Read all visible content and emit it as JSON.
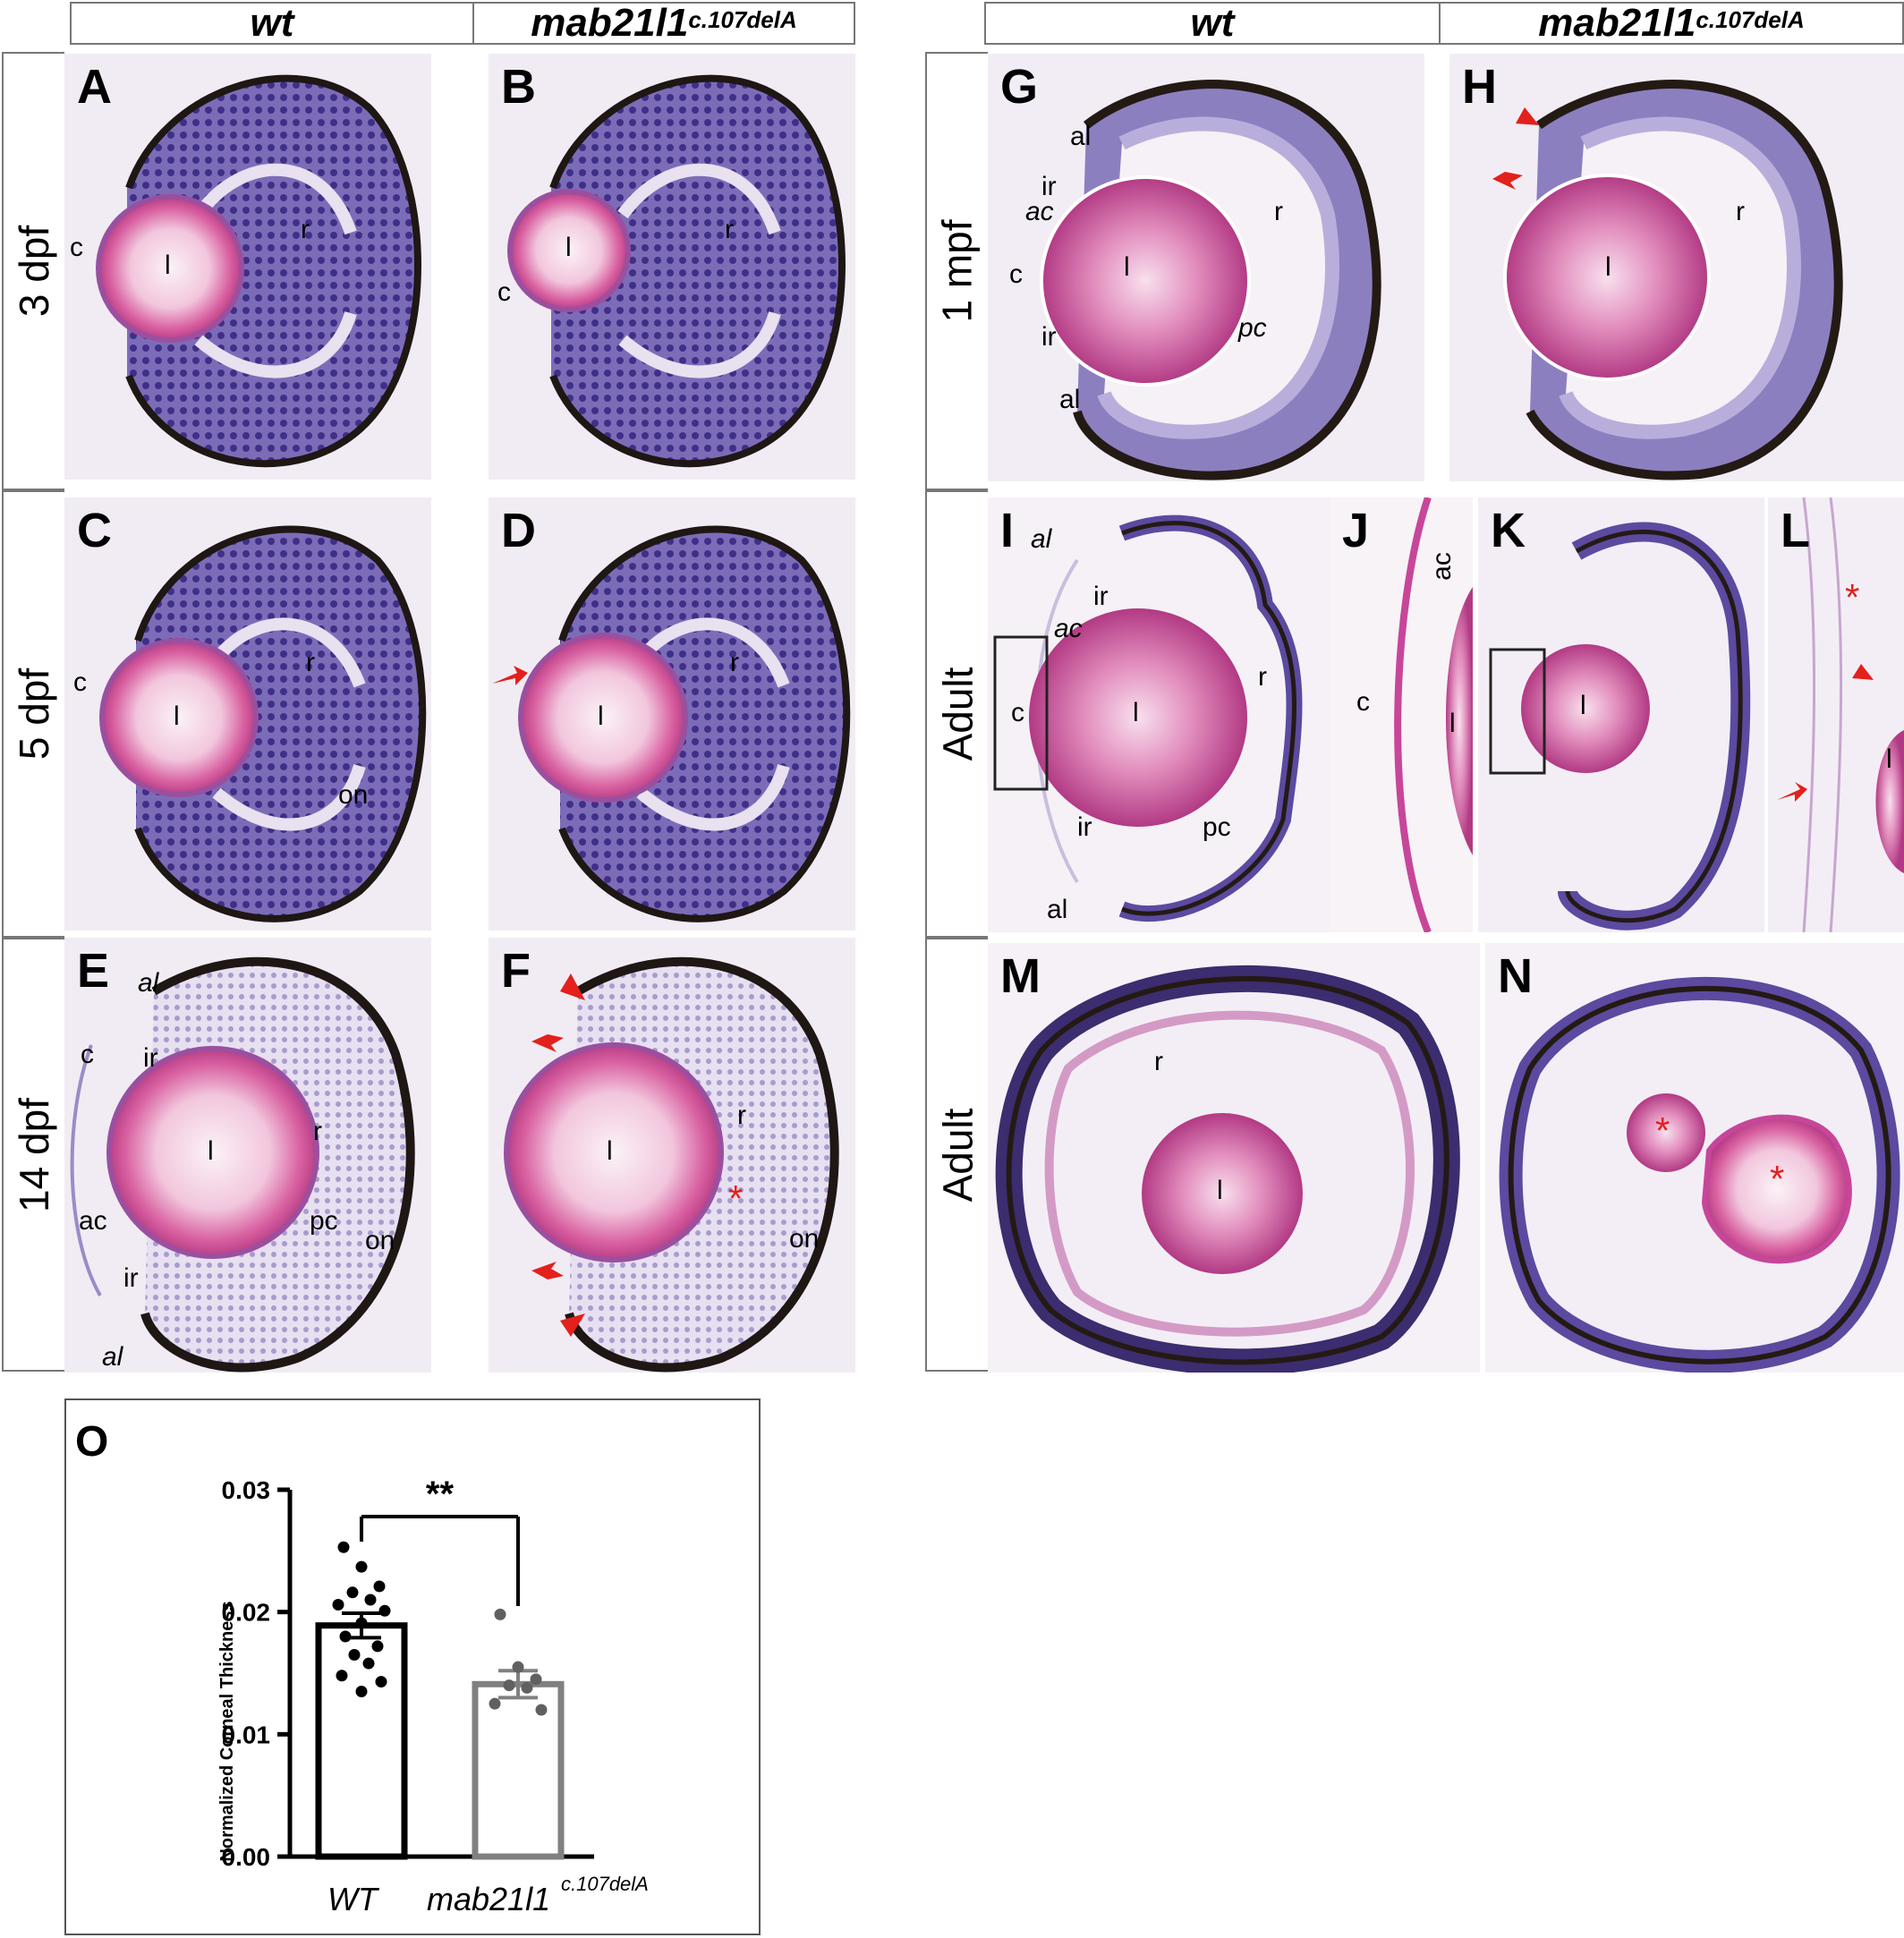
{
  "headers": {
    "wt": "wt",
    "mutant_base": "mab21l1",
    "mutant_sup": "c.107delA"
  },
  "row_labels": [
    "3 dpf",
    "5 dpf",
    "14 dpf",
    "1 mpf",
    "Adult",
    "Adult"
  ],
  "panels": {
    "A": {
      "letter": "A",
      "labels": {
        "c": "c",
        "l": "l",
        "r": "r"
      }
    },
    "B": {
      "letter": "B",
      "labels": {
        "c": "c",
        "l": "l",
        "r": "r"
      }
    },
    "C": {
      "letter": "C",
      "labels": {
        "c": "c",
        "l": "l",
        "r": "r",
        "on": "on"
      }
    },
    "D": {
      "letter": "D",
      "labels": {
        "l": "l",
        "r": "r"
      }
    },
    "E": {
      "letter": "E",
      "labels": {
        "al1": "al",
        "ir1": "ir",
        "c": "c",
        "l": "l",
        "r": "r",
        "ac": "ac",
        "pc": "pc",
        "on": "on",
        "ir2": "ir",
        "al2": "al"
      }
    },
    "F": {
      "letter": "F",
      "labels": {
        "l": "l",
        "r": "r",
        "on": "on",
        "star": "*"
      }
    },
    "G": {
      "letter": "G",
      "labels": {
        "al1": "al",
        "ir1": "ir",
        "ac": "ac",
        "c": "c",
        "l": "l",
        "r": "r",
        "pc": "pc",
        "ir2": "ir",
        "al2": "al"
      }
    },
    "H": {
      "letter": "H",
      "labels": {
        "l": "l",
        "r": "r"
      }
    },
    "I": {
      "letter": "I",
      "labels": {
        "al1": "al",
        "ir1": "ir",
        "ac": "ac",
        "c": "c",
        "l": "l",
        "r": "r",
        "pc": "pc",
        "ir2": "ir",
        "al2": "al"
      }
    },
    "J": {
      "letter": "J",
      "labels": {
        "ac": "ac",
        "c": "c",
        "l": "l"
      }
    },
    "K": {
      "letter": "K",
      "labels": {
        "l": "l"
      }
    },
    "L": {
      "letter": "L",
      "labels": {
        "star": "*",
        "l": "l"
      }
    },
    "M": {
      "letter": "M",
      "labels": {
        "r": "r",
        "l": "l"
      }
    },
    "N": {
      "letter": "N",
      "labels": {
        "star1": "*",
        "star2": "*"
      }
    }
  },
  "colors": {
    "retina": "#6a5aa8",
    "retina_light": "#b9aedb",
    "lens_outer": "#d0559a",
    "lens_inner": "#f7e4ef",
    "pigment": "#2a1f1a",
    "tissue_bg": "#f3eef5",
    "red_marker": "#e3201b"
  },
  "chart_data": {
    "type": "bar",
    "panel_letter": "O",
    "categories": [
      "WT",
      "mab21l1"
    ],
    "category_sup": [
      "",
      "c.107delA"
    ],
    "values": [
      0.0189,
      0.0141
    ],
    "errors": [
      0.001,
      0.0011
    ],
    "points": [
      [
        0.0253,
        0.0237,
        0.0221,
        0.0216,
        0.021,
        0.0206,
        0.0201,
        0.0191,
        0.018,
        0.0172,
        0.0165,
        0.0158,
        0.0148,
        0.0143,
        0.0135
      ],
      [
        0.0198,
        0.0155,
        0.0145,
        0.014,
        0.0138,
        0.0125,
        0.012
      ]
    ],
    "bar_colors": [
      "#000000",
      "#808080"
    ],
    "ylabel": "Normalized Corneal Thickness",
    "ylim": [
      0,
      0.03
    ],
    "yticks": [
      "0.00",
      "0.01",
      "0.02",
      "0.03"
    ],
    "significance": "**",
    "grid": false
  }
}
